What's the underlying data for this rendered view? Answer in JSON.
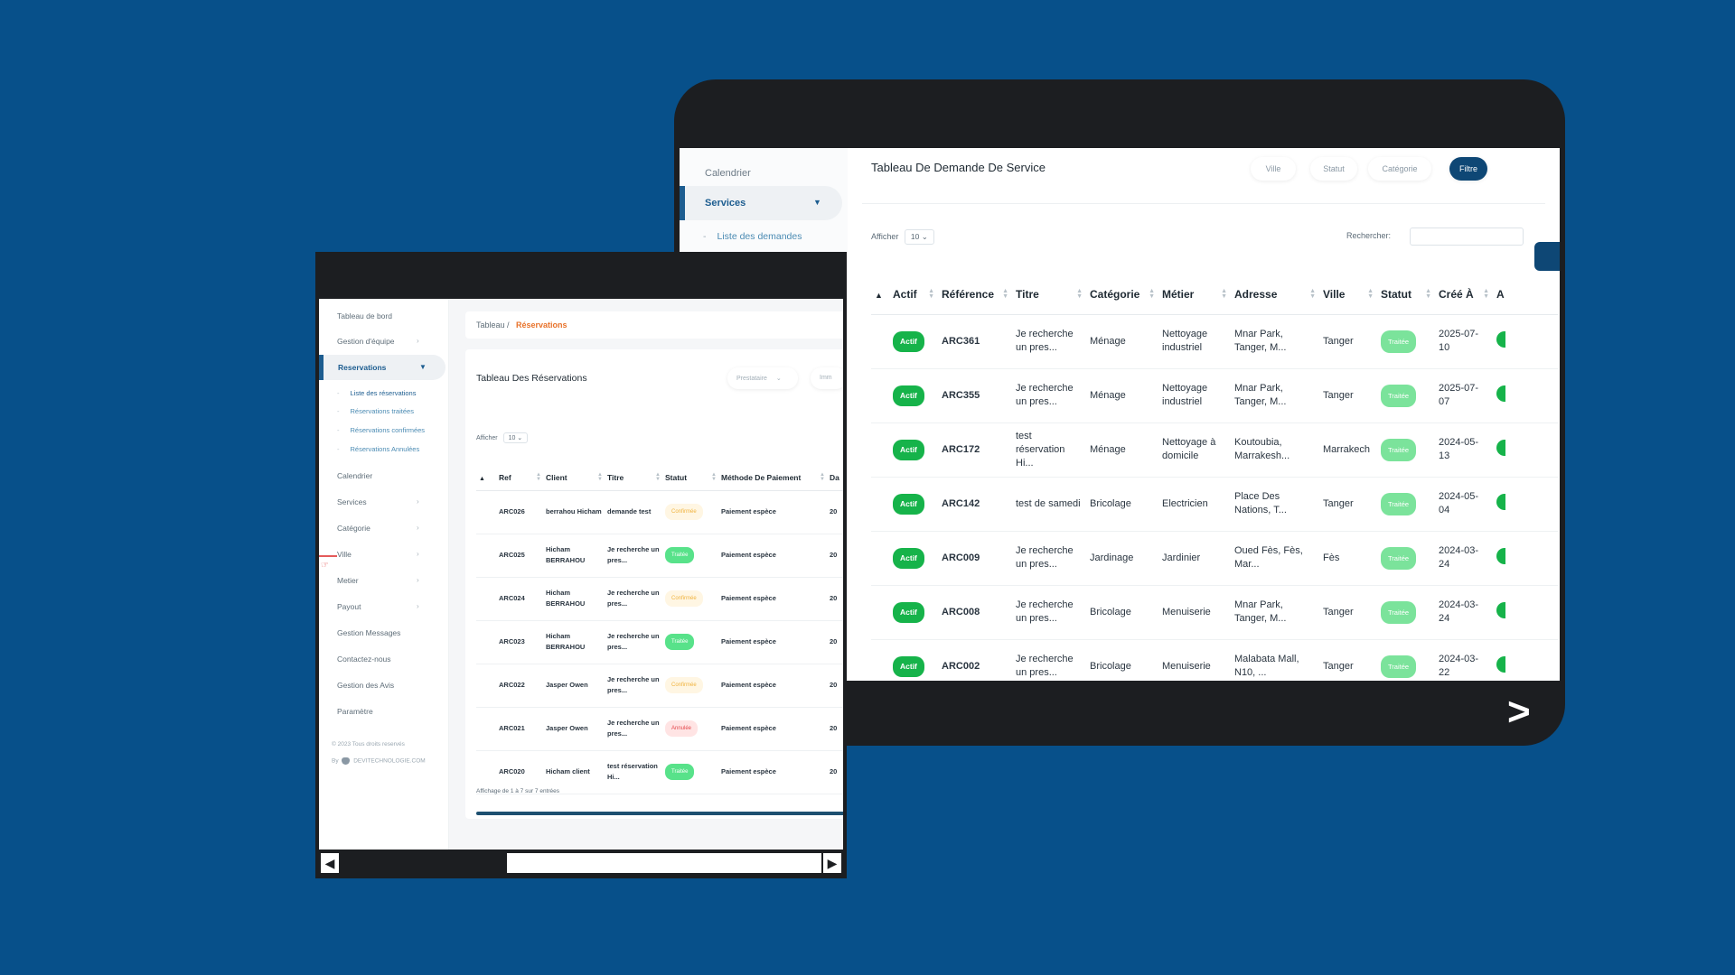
{
  "colors": {
    "background": "#07508a",
    "frame": "#1c1e21",
    "accent": "#1d5d90",
    "actif": "#16b34a",
    "traitee": "#7be39b",
    "breadcrumb_active": "#e8722a"
  },
  "services_window": {
    "sidebar": {
      "calendar": "Calendrier",
      "services": "Services",
      "sub_item": "Liste des demandes"
    },
    "title": "Tableau De Demande De Service",
    "filters": [
      "Ville",
      "Statut",
      "Catégorie"
    ],
    "filter_button": "Filtre",
    "afficher_label": "Afficher",
    "afficher_value": "10",
    "search_label": "Rechercher:",
    "columns": [
      "Actif",
      "Référence",
      "Titre",
      "Catégorie",
      "Métier",
      "Adresse",
      "Ville",
      "Statut",
      "Créé À",
      "A"
    ],
    "rows": [
      {
        "actif": "Actif",
        "ref": "ARC361",
        "titre": "Je recherche un pres...",
        "categorie": "Ménage",
        "metier": "Nettoyage industriel",
        "adresse": "Mnar Park, Tanger, M...",
        "ville": "Tanger",
        "statut": "Traitée",
        "cree": "2025-07-10"
      },
      {
        "actif": "Actif",
        "ref": "ARC355",
        "titre": "Je recherche un pres...",
        "categorie": "Ménage",
        "metier": "Nettoyage industriel",
        "adresse": "Mnar Park, Tanger, M...",
        "ville": "Tanger",
        "statut": "Traitée",
        "cree": "2025-07-07"
      },
      {
        "actif": "Actif",
        "ref": "ARC172",
        "titre": "test réservation Hi...",
        "categorie": "Ménage",
        "metier": "Nettoyage à domicile",
        "adresse": "Koutoubia, Marrakesh...",
        "ville": "Marrakech",
        "statut": "Traitée",
        "cree": "2024-05-13"
      },
      {
        "actif": "Actif",
        "ref": "ARC142",
        "titre": "test de samedi",
        "categorie": "Bricolage",
        "metier": "Electricien",
        "adresse": "Place Des Nations, T...",
        "ville": "Tanger",
        "statut": "Traitée",
        "cree": "2024-05-04"
      },
      {
        "actif": "Actif",
        "ref": "ARC009",
        "titre": "Je recherche un pres...",
        "categorie": "Jardinage",
        "metier": "Jardinier",
        "adresse": "Oued Fès, Fès, Mar...",
        "ville": "Fès",
        "statut": "Traitée",
        "cree": "2024-03-24"
      },
      {
        "actif": "Actif",
        "ref": "ARC008",
        "titre": "Je recherche un pres...",
        "categorie": "Bricolage",
        "metier": "Menuiserie",
        "adresse": "Mnar Park, Tanger, M...",
        "ville": "Tanger",
        "statut": "Traitée",
        "cree": "2024-03-24"
      },
      {
        "actif": "Actif",
        "ref": "ARC002",
        "titre": "Je recherche un pres...",
        "categorie": "Bricolage",
        "metier": "Menuiserie",
        "adresse": "Malabata Mall, N10, ...",
        "ville": "Tanger",
        "statut": "Traitée",
        "cree": "2024-03-22"
      }
    ],
    "next_icon": "chevron-right-icon"
  },
  "reservations_window": {
    "sidebar": {
      "items": [
        {
          "label": "Tableau de bord",
          "arrow": false
        },
        {
          "label": "Gestion d'équipe",
          "arrow": true
        }
      ],
      "active": "Reservations",
      "sub_items": [
        "Liste des réservations",
        "Réservations traitées",
        "Réservations confirmées",
        "Réservations Annulées"
      ],
      "items_after": [
        {
          "label": "Calendrier",
          "arrow": false
        },
        {
          "label": "Services",
          "arrow": true
        },
        {
          "label": "Catégorie",
          "arrow": true
        },
        {
          "label": "Ville",
          "arrow": true
        },
        {
          "label": "Metier",
          "arrow": true
        },
        {
          "label": "Payout",
          "arrow": true
        },
        {
          "label": "Gestion Messages",
          "arrow": false
        },
        {
          "label": "Contactez-nous",
          "arrow": false
        },
        {
          "label": "Gestion des Avis",
          "arrow": false
        },
        {
          "label": "Paramètre",
          "arrow": false
        }
      ],
      "copyright": "© 2023 Tous droits reservés",
      "by": "By",
      "company": "DEVITECHNOLOGIE.COM"
    },
    "breadcrumb": {
      "root": "Tableau",
      "sep": "/",
      "current": "Réservations"
    },
    "title": "Tableau Des Réservations",
    "filters": [
      "Prestataire",
      "Imm"
    ],
    "afficher_label": "Afficher",
    "afficher_value": "10",
    "columns": [
      "Ref",
      "Client",
      "Titre",
      "Statut",
      "Méthode De Paiement",
      "Da"
    ],
    "rows": [
      {
        "ref": "ARC026",
        "client": "berrahou Hicham",
        "titre": "demande test",
        "statut": "Confirmée",
        "status_type": "conf",
        "paiement": "Paiement espèce",
        "date": "20"
      },
      {
        "ref": "ARC025",
        "client": "Hicham BERRAHOU",
        "titre": "Je recherche un pres...",
        "statut": "Traitée",
        "status_type": "trait",
        "paiement": "Paiement espèce",
        "date": "20"
      },
      {
        "ref": "ARC024",
        "client": "Hicham BERRAHOU",
        "titre": "Je recherche un pres...",
        "statut": "Confirmée",
        "status_type": "conf",
        "paiement": "Paiement espèce",
        "date": "20"
      },
      {
        "ref": "ARC023",
        "client": "Hicham BERRAHOU",
        "titre": "Je recherche un pres...",
        "statut": "Traitée",
        "status_type": "trait",
        "paiement": "Paiement espèce",
        "date": "20"
      },
      {
        "ref": "ARC022",
        "client": "Jasper Owen",
        "titre": "Je recherche un pres...",
        "statut": "Confirmée",
        "status_type": "conf",
        "paiement": "Paiement espèce",
        "date": "20"
      },
      {
        "ref": "ARC021",
        "client": "Jasper Owen",
        "titre": "Je recherche un pres...",
        "statut": "Annulée",
        "status_type": "ann",
        "paiement": "Paiement espèce",
        "date": "20"
      },
      {
        "ref": "ARC020",
        "client": "Hicham client",
        "titre": "test réservation Hi...",
        "statut": "Traitée",
        "status_type": "trait",
        "paiement": "Paiement espèce",
        "date": "20"
      }
    ],
    "footer": "Affichage de 1 à 7 sur 7 entrées"
  }
}
